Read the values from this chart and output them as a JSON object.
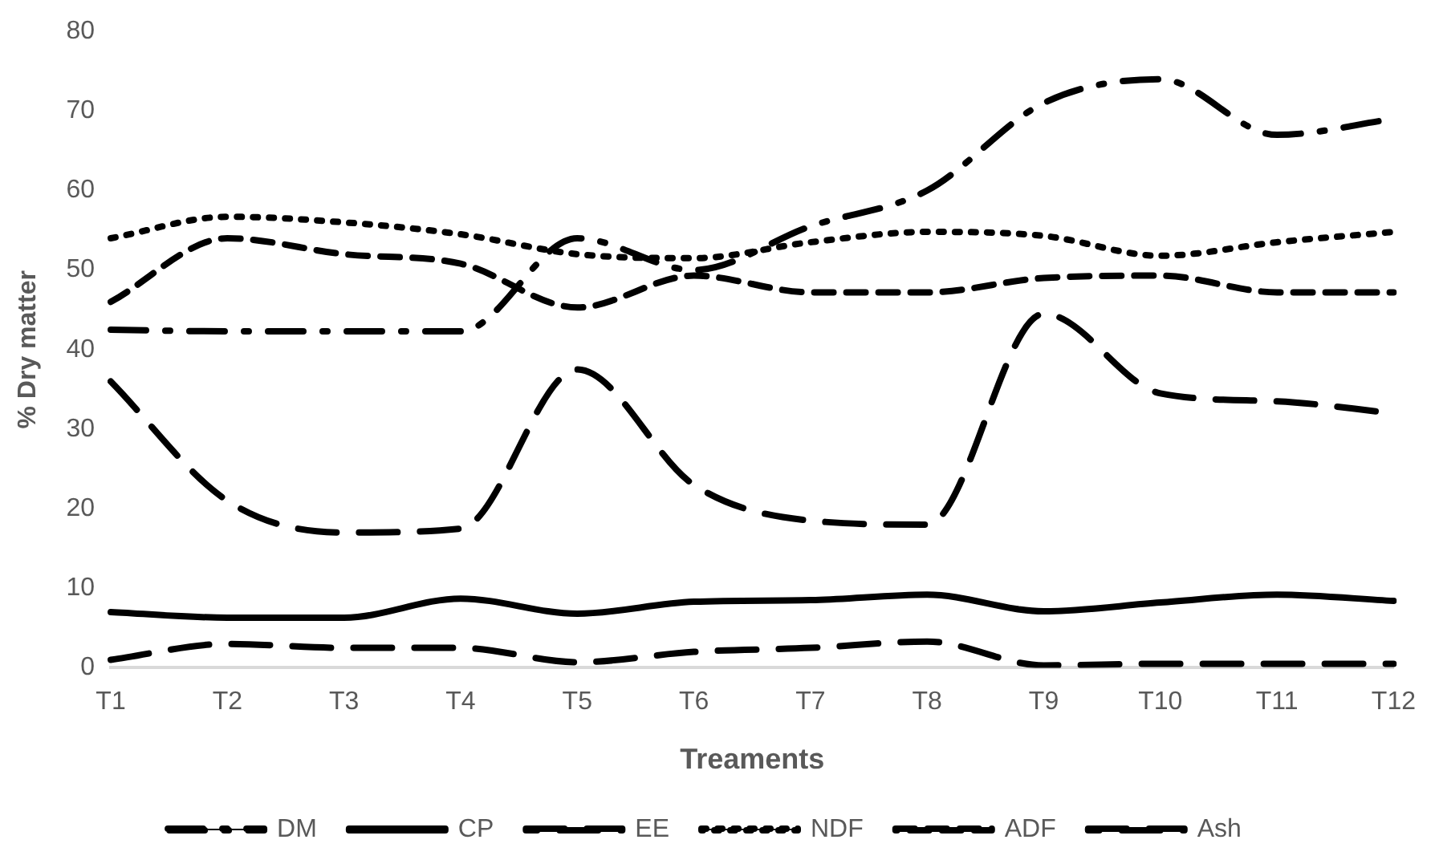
{
  "chart_data": {
    "type": "line",
    "xlabel": "Treaments",
    "ylabel": "% Dry matter",
    "categories": [
      "T1",
      "T2",
      "T3",
      "T4",
      "T5",
      "T6",
      "T7",
      "T8",
      "T9",
      "T10",
      "T11",
      "T12"
    ],
    "ylim": [
      0,
      80
    ],
    "yticks": [
      0,
      10,
      20,
      30,
      40,
      50,
      60,
      70,
      80
    ],
    "grid": false,
    "legend": "bottom",
    "marker": "none",
    "series": [
      {
        "name": "DM",
        "color": "#000000",
        "line_style": "dashdot",
        "values": [
          42.5,
          42.3,
          42.3,
          42.3,
          54,
          50,
          55.5,
          60,
          71,
          74,
          67,
          69
        ]
      },
      {
        "name": "CP",
        "color": "#000000",
        "line_style": "solid",
        "values": [
          7,
          6.3,
          6.3,
          8.7,
          6.8,
          8.3,
          8.5,
          9.2,
          7.1,
          8.2,
          9.2,
          8.4
        ]
      },
      {
        "name": "EE",
        "color": "#000000",
        "line_style": "longdash",
        "values": [
          1,
          3,
          2.5,
          2.5,
          0.7,
          2,
          2.5,
          3.3,
          0.3,
          0.5,
          0.5,
          0.5
        ]
      },
      {
        "name": "NDF",
        "color": "#000000",
        "line_style": "dotted",
        "values": [
          54,
          56.7,
          56,
          54.5,
          52,
          51.5,
          53.5,
          54.8,
          54.3,
          51.8,
          53.5,
          54.8
        ]
      },
      {
        "name": "ADF",
        "color": "#000000",
        "line_style": "dashed",
        "values": [
          46,
          54,
          52,
          50.8,
          45.3,
          49.3,
          47.2,
          47.2,
          49,
          49.3,
          47.2,
          47.2
        ]
      },
      {
        "name": "Ash",
        "color": "#000000",
        "line_style": "longdash",
        "values": [
          36,
          21,
          17,
          17.5,
          37.5,
          23,
          18.5,
          18,
          44.5,
          34.5,
          33.5,
          32
        ]
      }
    ]
  }
}
